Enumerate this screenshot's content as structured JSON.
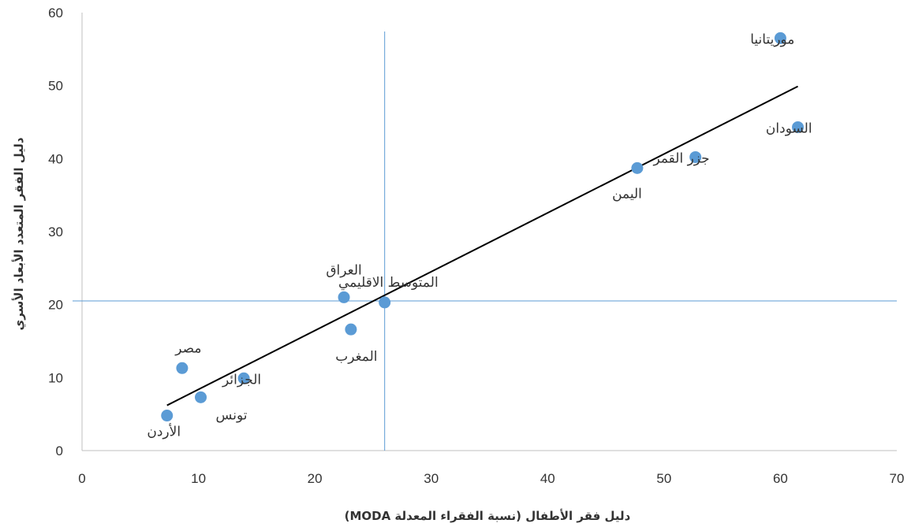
{
  "chart_data": {
    "type": "scatter",
    "title": "",
    "xlabel": "دليل فقر الأطفال (نسبة الفقراء المعدلة MODA)",
    "ylabel": "دليل الفقر المتعدد الأبعاد الأسري",
    "xlim": [
      0,
      70
    ],
    "ylim": [
      0,
      60
    ],
    "x_ticks": [
      0,
      10,
      20,
      30,
      40,
      50,
      60,
      70
    ],
    "y_ticks": [
      0,
      10,
      20,
      30,
      40,
      50,
      60
    ],
    "grid": false,
    "legend": "none",
    "point_color": "#5b9bd5",
    "reference_line_color": "#5b9bd5",
    "trendline_color": "#000000",
    "points": [
      {
        "label": "موريتانيا",
        "x": 60.0,
        "y": 56.5
      },
      {
        "label": "السودان",
        "x": 61.5,
        "y": 44.3
      },
      {
        "label": "جزر القمر",
        "x": 52.7,
        "y": 40.2
      },
      {
        "label": "اليمن",
        "x": 47.7,
        "y": 38.7
      },
      {
        "label": "العراق",
        "x": 22.5,
        "y": 21.0
      },
      {
        "label": "المتوسط الاقليمي",
        "x": 26.0,
        "y": 20.3
      },
      {
        "label": "المغرب",
        "x": 23.1,
        "y": 16.6
      },
      {
        "label": "مصر",
        "x": 8.6,
        "y": 11.3
      },
      {
        "label": "الجزائر",
        "x": 13.9,
        "y": 9.9
      },
      {
        "label": "تونس",
        "x": 10.2,
        "y": 7.3
      },
      {
        "label": "الأردن",
        "x": 7.3,
        "y": 4.8
      }
    ],
    "reference_lines": {
      "x": 26.0,
      "y": 20.5
    },
    "trendline": {
      "x": [
        7.3,
        61.5
      ],
      "y": [
        6.2,
        49.9
      ]
    }
  }
}
